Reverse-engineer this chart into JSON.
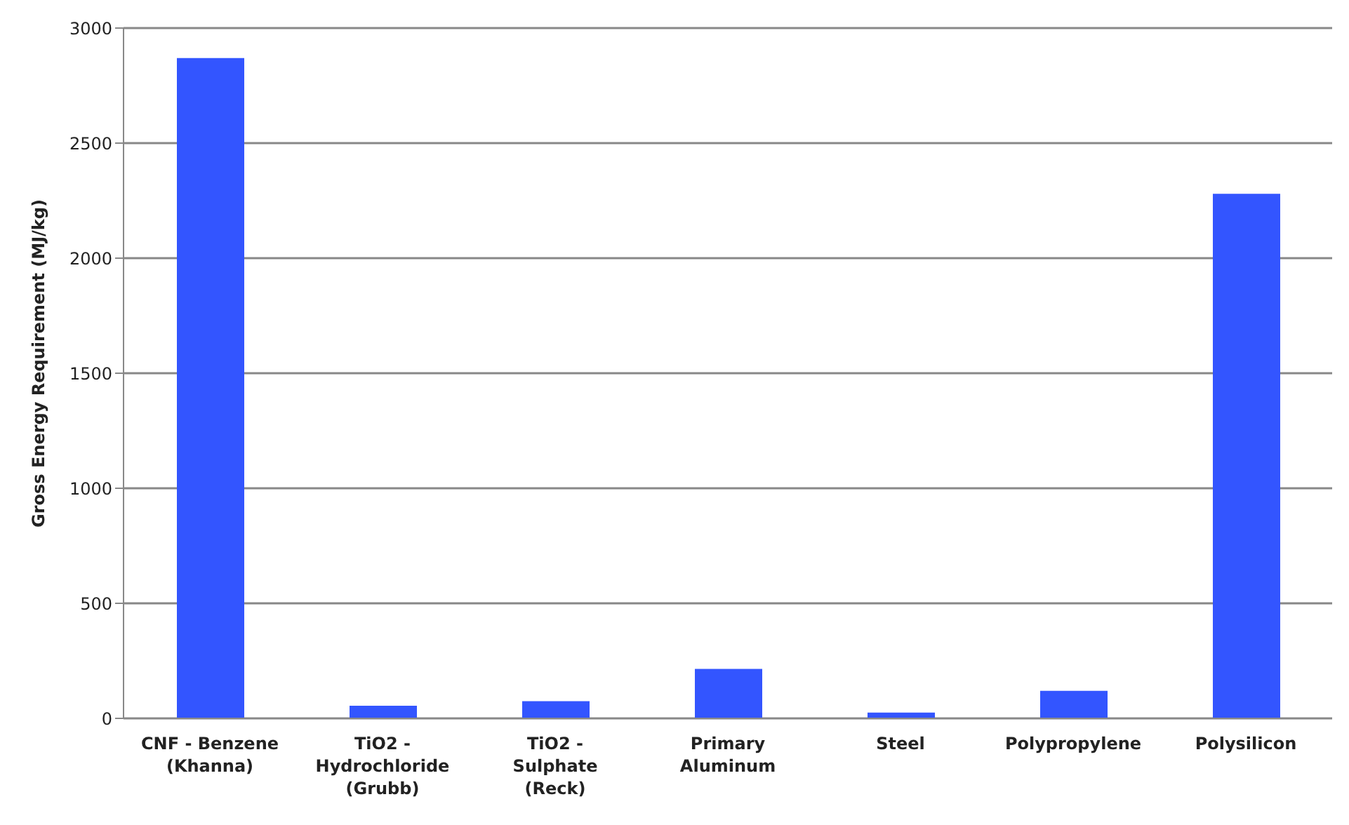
{
  "chart_data": {
    "type": "bar",
    "ylabel": "Gross Energy Requirement (MJ/kg)",
    "categories": [
      "CNF - Benzene (Khanna)",
      "TiO2 - Hydrochloride (Grubb)",
      "TiO2 - Sulphate (Reck)",
      "Primary Aluminum",
      "Steel",
      "Polypropylene",
      "Polysilicon"
    ],
    "values": [
      2870,
      55,
      75,
      215,
      25,
      120,
      2280
    ],
    "color": "#3355ff",
    "ylim": [
      0,
      3000
    ],
    "yticks": [
      0,
      500,
      1000,
      1500,
      2000,
      2500,
      3000
    ],
    "grid": "y",
    "legend": false
  }
}
